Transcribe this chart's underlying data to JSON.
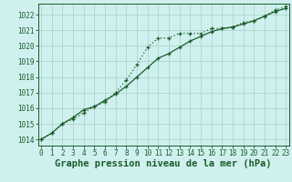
{
  "title": "Graphe pression niveau de la mer (hPa)",
  "bg_color": "#cff0ee",
  "grid_color": "#aad8cc",
  "line_color": "#1a5c2a",
  "xlim": [
    -0.3,
    23.3
  ],
  "ylim": [
    1013.6,
    1022.7
  ],
  "xticks": [
    0,
    1,
    2,
    3,
    4,
    5,
    6,
    7,
    8,
    9,
    10,
    11,
    12,
    13,
    14,
    15,
    16,
    17,
    18,
    19,
    20,
    21,
    22,
    23
  ],
  "yticks": [
    1014,
    1015,
    1016,
    1017,
    1018,
    1019,
    1020,
    1021,
    1022
  ],
  "series1_x": [
    0,
    1,
    2,
    3,
    4,
    5,
    6,
    7,
    8,
    9,
    10,
    11,
    12,
    13,
    14,
    15,
    16,
    17,
    18,
    19,
    20,
    21,
    22,
    23
  ],
  "series1_y": [
    1014.0,
    1014.4,
    1015.0,
    1015.4,
    1015.9,
    1016.1,
    1016.5,
    1016.9,
    1017.4,
    1018.0,
    1018.6,
    1019.2,
    1019.5,
    1019.9,
    1020.3,
    1020.6,
    1020.9,
    1021.1,
    1021.2,
    1021.4,
    1021.6,
    1021.9,
    1022.2,
    1022.4
  ],
  "series2_x": [
    0,
    1,
    2,
    3,
    4,
    5,
    6,
    7,
    8,
    9,
    10,
    11,
    12,
    13,
    14,
    15,
    16,
    17,
    18,
    19,
    20,
    21,
    22,
    23
  ],
  "series2_y": [
    1014.0,
    1014.4,
    1015.0,
    1015.3,
    1015.7,
    1016.1,
    1016.4,
    1017.0,
    1017.8,
    1018.8,
    1019.9,
    1020.5,
    1020.5,
    1020.8,
    1020.8,
    1020.8,
    1021.1,
    1021.1,
    1021.2,
    1021.5,
    1021.6,
    1021.9,
    1022.3,
    1022.5
  ],
  "tick_fontsize": 5.5,
  "xlabel_fontsize": 7.5
}
